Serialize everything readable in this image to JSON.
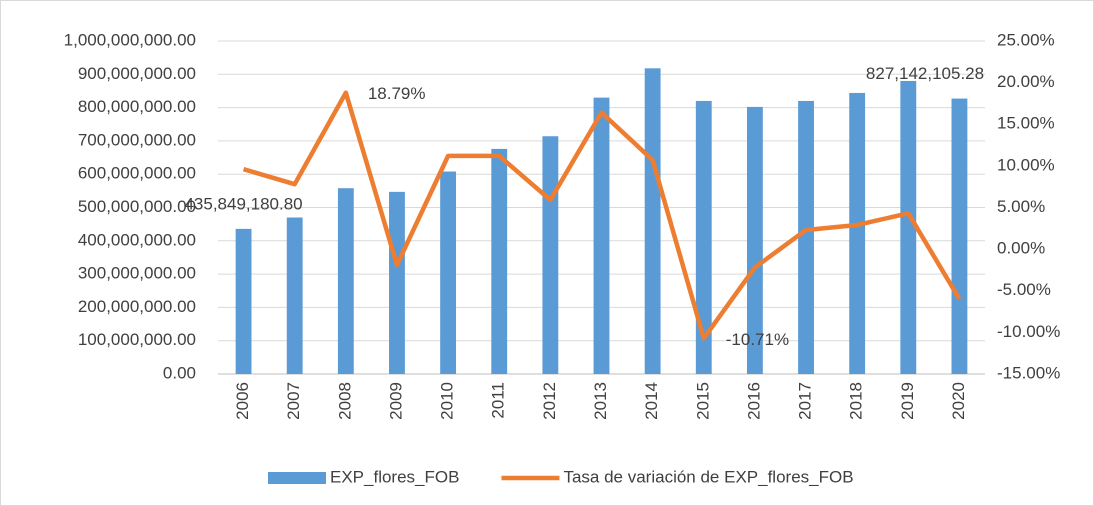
{
  "chart_data": {
    "type": "bar",
    "categories": [
      "2006",
      "2007",
      "2008",
      "2009",
      "2010",
      "2011",
      "2012",
      "2013",
      "2014",
      "2015",
      "2016",
      "2017",
      "2018",
      "2019",
      "2020"
    ],
    "series": [
      {
        "name": "EXP_flores_FOB",
        "type": "bar",
        "color": "#5b9bd5",
        "values": [
          435849180.8,
          470000000,
          558000000,
          547000000,
          608000000,
          676000000,
          714000000,
          830000000,
          918000000,
          820000000,
          802000000,
          820000000,
          844000000,
          880000000,
          827142105.28
        ],
        "value_labels": [
          "435,849,180.80",
          null,
          null,
          null,
          null,
          null,
          null,
          null,
          null,
          null,
          null,
          null,
          null,
          null,
          "827,142,105.28"
        ]
      },
      {
        "name": "Tasa de variación de EXP_flores_FOB",
        "type": "line",
        "axis": "y2",
        "color": "#ed7d31",
        "values": [
          9.6,
          7.8,
          18.79,
          -1.9,
          11.2,
          11.2,
          5.9,
          16.4,
          10.7,
          -10.71,
          -2.2,
          2.3,
          2.9,
          4.3,
          -6.0
        ],
        "value_labels": [
          null,
          null,
          "18.79%",
          null,
          null,
          null,
          null,
          null,
          null,
          "-10.71%",
          null,
          null,
          null,
          null,
          null
        ]
      }
    ],
    "ylim": [
      0,
      1000000000
    ],
    "yticks": [
      {
        "value": 0,
        "label": "0.00"
      },
      {
        "value": 100000000,
        "label": "100,000,000.00"
      },
      {
        "value": 200000000,
        "label": "200,000,000.00"
      },
      {
        "value": 300000000,
        "label": "300,000,000.00"
      },
      {
        "value": 400000000,
        "label": "400,000,000.00"
      },
      {
        "value": 500000000,
        "label": "500,000,000.00"
      },
      {
        "value": 600000000,
        "label": "600,000,000.00"
      },
      {
        "value": 700000000,
        "label": "700,000,000.00"
      },
      {
        "value": 800000000,
        "label": "800,000,000.00"
      },
      {
        "value": 900000000,
        "label": "900,000,000.00"
      },
      {
        "value": 1000000000,
        "label": "1,000,000,000.00"
      }
    ],
    "y2lim": [
      -15,
      25
    ],
    "y2ticks": [
      {
        "value": -15,
        "label": "-15.00%"
      },
      {
        "value": -10,
        "label": "-10.00%"
      },
      {
        "value": -5,
        "label": "-5.00%"
      },
      {
        "value": 0,
        "label": "0.00%"
      },
      {
        "value": 5,
        "label": "5.00%"
      },
      {
        "value": 10,
        "label": "10.00%"
      },
      {
        "value": 15,
        "label": "15.00%"
      },
      {
        "value": 20,
        "label": "20.00%"
      },
      {
        "value": 25,
        "label": "25.00%"
      }
    ],
    "grid": true,
    "legend": "bottom"
  }
}
